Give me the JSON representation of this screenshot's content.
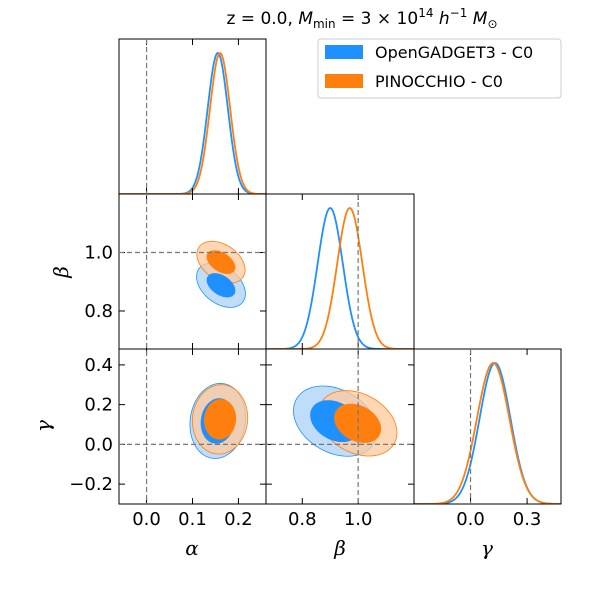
{
  "colors": {
    "opengadget": "#1e90ff",
    "opengadget_light": "#a9d0f7",
    "pinocchio": "#ff7f0e",
    "pinocchio_light": "#ffc99b",
    "truth_line": "#777777"
  },
  "chart_data": {
    "type": "corner",
    "title_prefix": "z = 0.0, ",
    "title_math": "M_min = 3 × 10^14 h^-1 M_⊙",
    "parameters": [
      {
        "name": "alpha",
        "label": "α",
        "truth": 0.0,
        "range": [
          -0.06,
          0.26
        ],
        "ticks": [
          0.0,
          0.1,
          0.2
        ],
        "tick_labels": [
          "0.0",
          "0.1",
          "0.2"
        ]
      },
      {
        "name": "beta",
        "label": "β",
        "truth": 1.0,
        "range": [
          0.67,
          1.2
        ],
        "ticks": [
          0.8,
          1.0
        ],
        "tick_labels": [
          "0.8",
          "1.0"
        ]
      },
      {
        "name": "gamma",
        "label": "γ",
        "truth": 0.0,
        "range": [
          -0.3,
          0.48
        ],
        "ticks": [
          -0.2,
          0.0,
          0.2,
          0.4
        ],
        "tick_labels": [
          "−0.2",
          "0.0",
          "0.2",
          "0.4"
        ],
        "x_ticks": [
          0.0,
          0.3
        ],
        "x_tick_labels": [
          "0.0",
          "0.3"
        ]
      }
    ],
    "series": [
      {
        "name": "OpenGADGET3 - C0",
        "color_key": "opengadget",
        "mean": {
          "alpha": 0.155,
          "beta": 0.9,
          "gamma": 0.13
        },
        "sigma": {
          "alpha": 0.022,
          "beta": 0.045,
          "gamma": 0.082
        },
        "contours": {
          "alpha_beta": {
            "center": [
              0.162,
              0.888
            ],
            "inner": [
              0.034,
              0.032,
              0.6
            ],
            "outer": [
              0.06,
              0.062,
              0.66
            ]
          },
          "alpha_gamma": {
            "center": [
              0.155,
              0.118
            ],
            "inner": [
              0.036,
              0.113,
              0.15
            ],
            "outer": [
              0.06,
              0.19,
              0.15
            ]
          },
          "beta_gamma": {
            "center": [
              0.918,
              0.117
            ],
            "inner": [
              0.094,
              0.093,
              0.5
            ],
            "outer": [
              0.16,
              0.158,
              0.52
            ]
          }
        }
      },
      {
        "name": "PINOCCHIO - C0",
        "color_key": "pinocchio",
        "mean": {
          "alpha": 0.16,
          "beta": 0.97,
          "gamma": 0.12
        },
        "sigma": {
          "alpha": 0.022,
          "beta": 0.045,
          "gamma": 0.086
        },
        "contours": {
          "alpha_beta": {
            "center": [
              0.162,
              0.967
            ],
            "inner": [
              0.034,
              0.031,
              0.58
            ],
            "outer": [
              0.058,
              0.06,
              0.6
            ]
          },
          "alpha_gamma": {
            "center": [
              0.16,
              0.126
            ],
            "inner": [
              0.034,
              0.1,
              0.1
            ],
            "outer": [
              0.06,
              0.175,
              0.1
            ]
          },
          "beta_gamma": {
            "center": [
              0.998,
              0.106
            ],
            "inner": [
              0.088,
              0.087,
              0.5
            ],
            "outer": [
              0.15,
              0.148,
              0.5
            ]
          }
        }
      }
    ],
    "legend_position": "top-right"
  }
}
